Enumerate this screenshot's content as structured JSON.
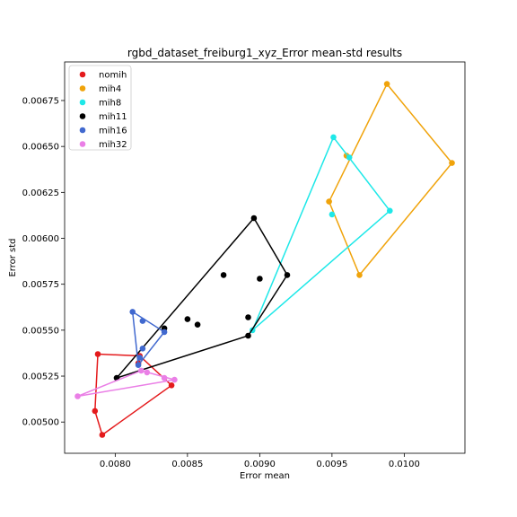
{
  "chart_data": {
    "type": "scatter",
    "title": "rgbd_dataset_freiburg1_xyz_Error mean-std results",
    "xlabel": "Error mean",
    "ylabel": "Error std",
    "xlim": [
      0.00765,
      0.01042
    ],
    "ylim": [
      0.00483,
      0.00696
    ],
    "x_ticks": [
      0.008,
      0.0085,
      0.009,
      0.0095,
      0.01
    ],
    "x_tick_labels": [
      "0.0080",
      "0.0085",
      "0.0090",
      "0.0095",
      "0.0100"
    ],
    "y_ticks": [
      0.005,
      0.00525,
      0.0055,
      0.00575,
      0.006,
      0.00625,
      0.0065,
      0.00675
    ],
    "y_tick_labels": [
      "0.00500",
      "0.00525",
      "0.00550",
      "0.00575",
      "0.00600",
      "0.00625",
      "0.00650",
      "0.00675"
    ],
    "grid": false,
    "legend_position": "top-left",
    "series": [
      {
        "name": "nomih",
        "color": "#e41a1c",
        "points": [
          [
            0.00788,
            0.00537
          ],
          [
            0.00786,
            0.00506
          ],
          [
            0.00791,
            0.00493
          ],
          [
            0.00839,
            0.0052
          ],
          [
            0.00817,
            0.00536
          ],
          [
            0.00816,
            0.00532
          ]
        ],
        "hull": [
          [
            0.00788,
            0.00537
          ],
          [
            0.00786,
            0.00506
          ],
          [
            0.00791,
            0.00493
          ],
          [
            0.00839,
            0.0052
          ],
          [
            0.00817,
            0.00536
          ],
          [
            0.00788,
            0.00537
          ]
        ]
      },
      {
        "name": "mih4",
        "color": "#f0a30a",
        "points": [
          [
            0.00988,
            0.00684
          ],
          [
            0.01033,
            0.00641
          ],
          [
            0.00969,
            0.0058
          ],
          [
            0.00948,
            0.0062
          ],
          [
            0.0096,
            0.00645
          ]
        ],
        "hull": [
          [
            0.00988,
            0.00684
          ],
          [
            0.01033,
            0.00641
          ],
          [
            0.00969,
            0.0058
          ],
          [
            0.00948,
            0.0062
          ],
          [
            0.00988,
            0.00684
          ]
        ]
      },
      {
        "name": "mih8",
        "color": "#1ee8e8",
        "points": [
          [
            0.00951,
            0.00655
          ],
          [
            0.00962,
            0.00644
          ],
          [
            0.0099,
            0.00615
          ],
          [
            0.0095,
            0.00613
          ],
          [
            0.00895,
            0.0055
          ]
        ],
        "hull": [
          [
            0.00951,
            0.00655
          ],
          [
            0.0099,
            0.00615
          ],
          [
            0.00895,
            0.0055
          ],
          [
            0.00951,
            0.00655
          ]
        ]
      },
      {
        "name": "mih11",
        "color": "#000000",
        "points": [
          [
            0.00896,
            0.00611
          ],
          [
            0.00919,
            0.0058
          ],
          [
            0.00875,
            0.0058
          ],
          [
            0.009,
            0.00578
          ],
          [
            0.00892,
            0.00557
          ],
          [
            0.0085,
            0.00556
          ],
          [
            0.00857,
            0.00553
          ],
          [
            0.00834,
            0.00551
          ],
          [
            0.00892,
            0.00547
          ],
          [
            0.00801,
            0.00524
          ]
        ],
        "hull": [
          [
            0.00896,
            0.00611
          ],
          [
            0.00919,
            0.0058
          ],
          [
            0.00892,
            0.00547
          ],
          [
            0.00801,
            0.00524
          ],
          [
            0.00896,
            0.00611
          ]
        ]
      },
      {
        "name": "mih16",
        "color": "#4169cf",
        "points": [
          [
            0.00812,
            0.0056
          ],
          [
            0.00819,
            0.00555
          ],
          [
            0.00834,
            0.00549
          ],
          [
            0.00819,
            0.0054
          ],
          [
            0.00817,
            0.00535
          ],
          [
            0.00816,
            0.00531
          ]
        ],
        "hull": [
          [
            0.00812,
            0.0056
          ],
          [
            0.00834,
            0.00549
          ],
          [
            0.00816,
            0.00531
          ],
          [
            0.00812,
            0.0056
          ]
        ]
      },
      {
        "name": "mih32",
        "color": "#ea7fe6",
        "points": [
          [
            0.00818,
            0.00528
          ],
          [
            0.00822,
            0.00527
          ],
          [
            0.00834,
            0.00524
          ],
          [
            0.00841,
            0.00523
          ],
          [
            0.00774,
            0.00514
          ]
        ],
        "hull": [
          [
            0.00818,
            0.00528
          ],
          [
            0.00841,
            0.00523
          ],
          [
            0.00774,
            0.00514
          ],
          [
            0.00818,
            0.00528
          ]
        ]
      }
    ]
  }
}
